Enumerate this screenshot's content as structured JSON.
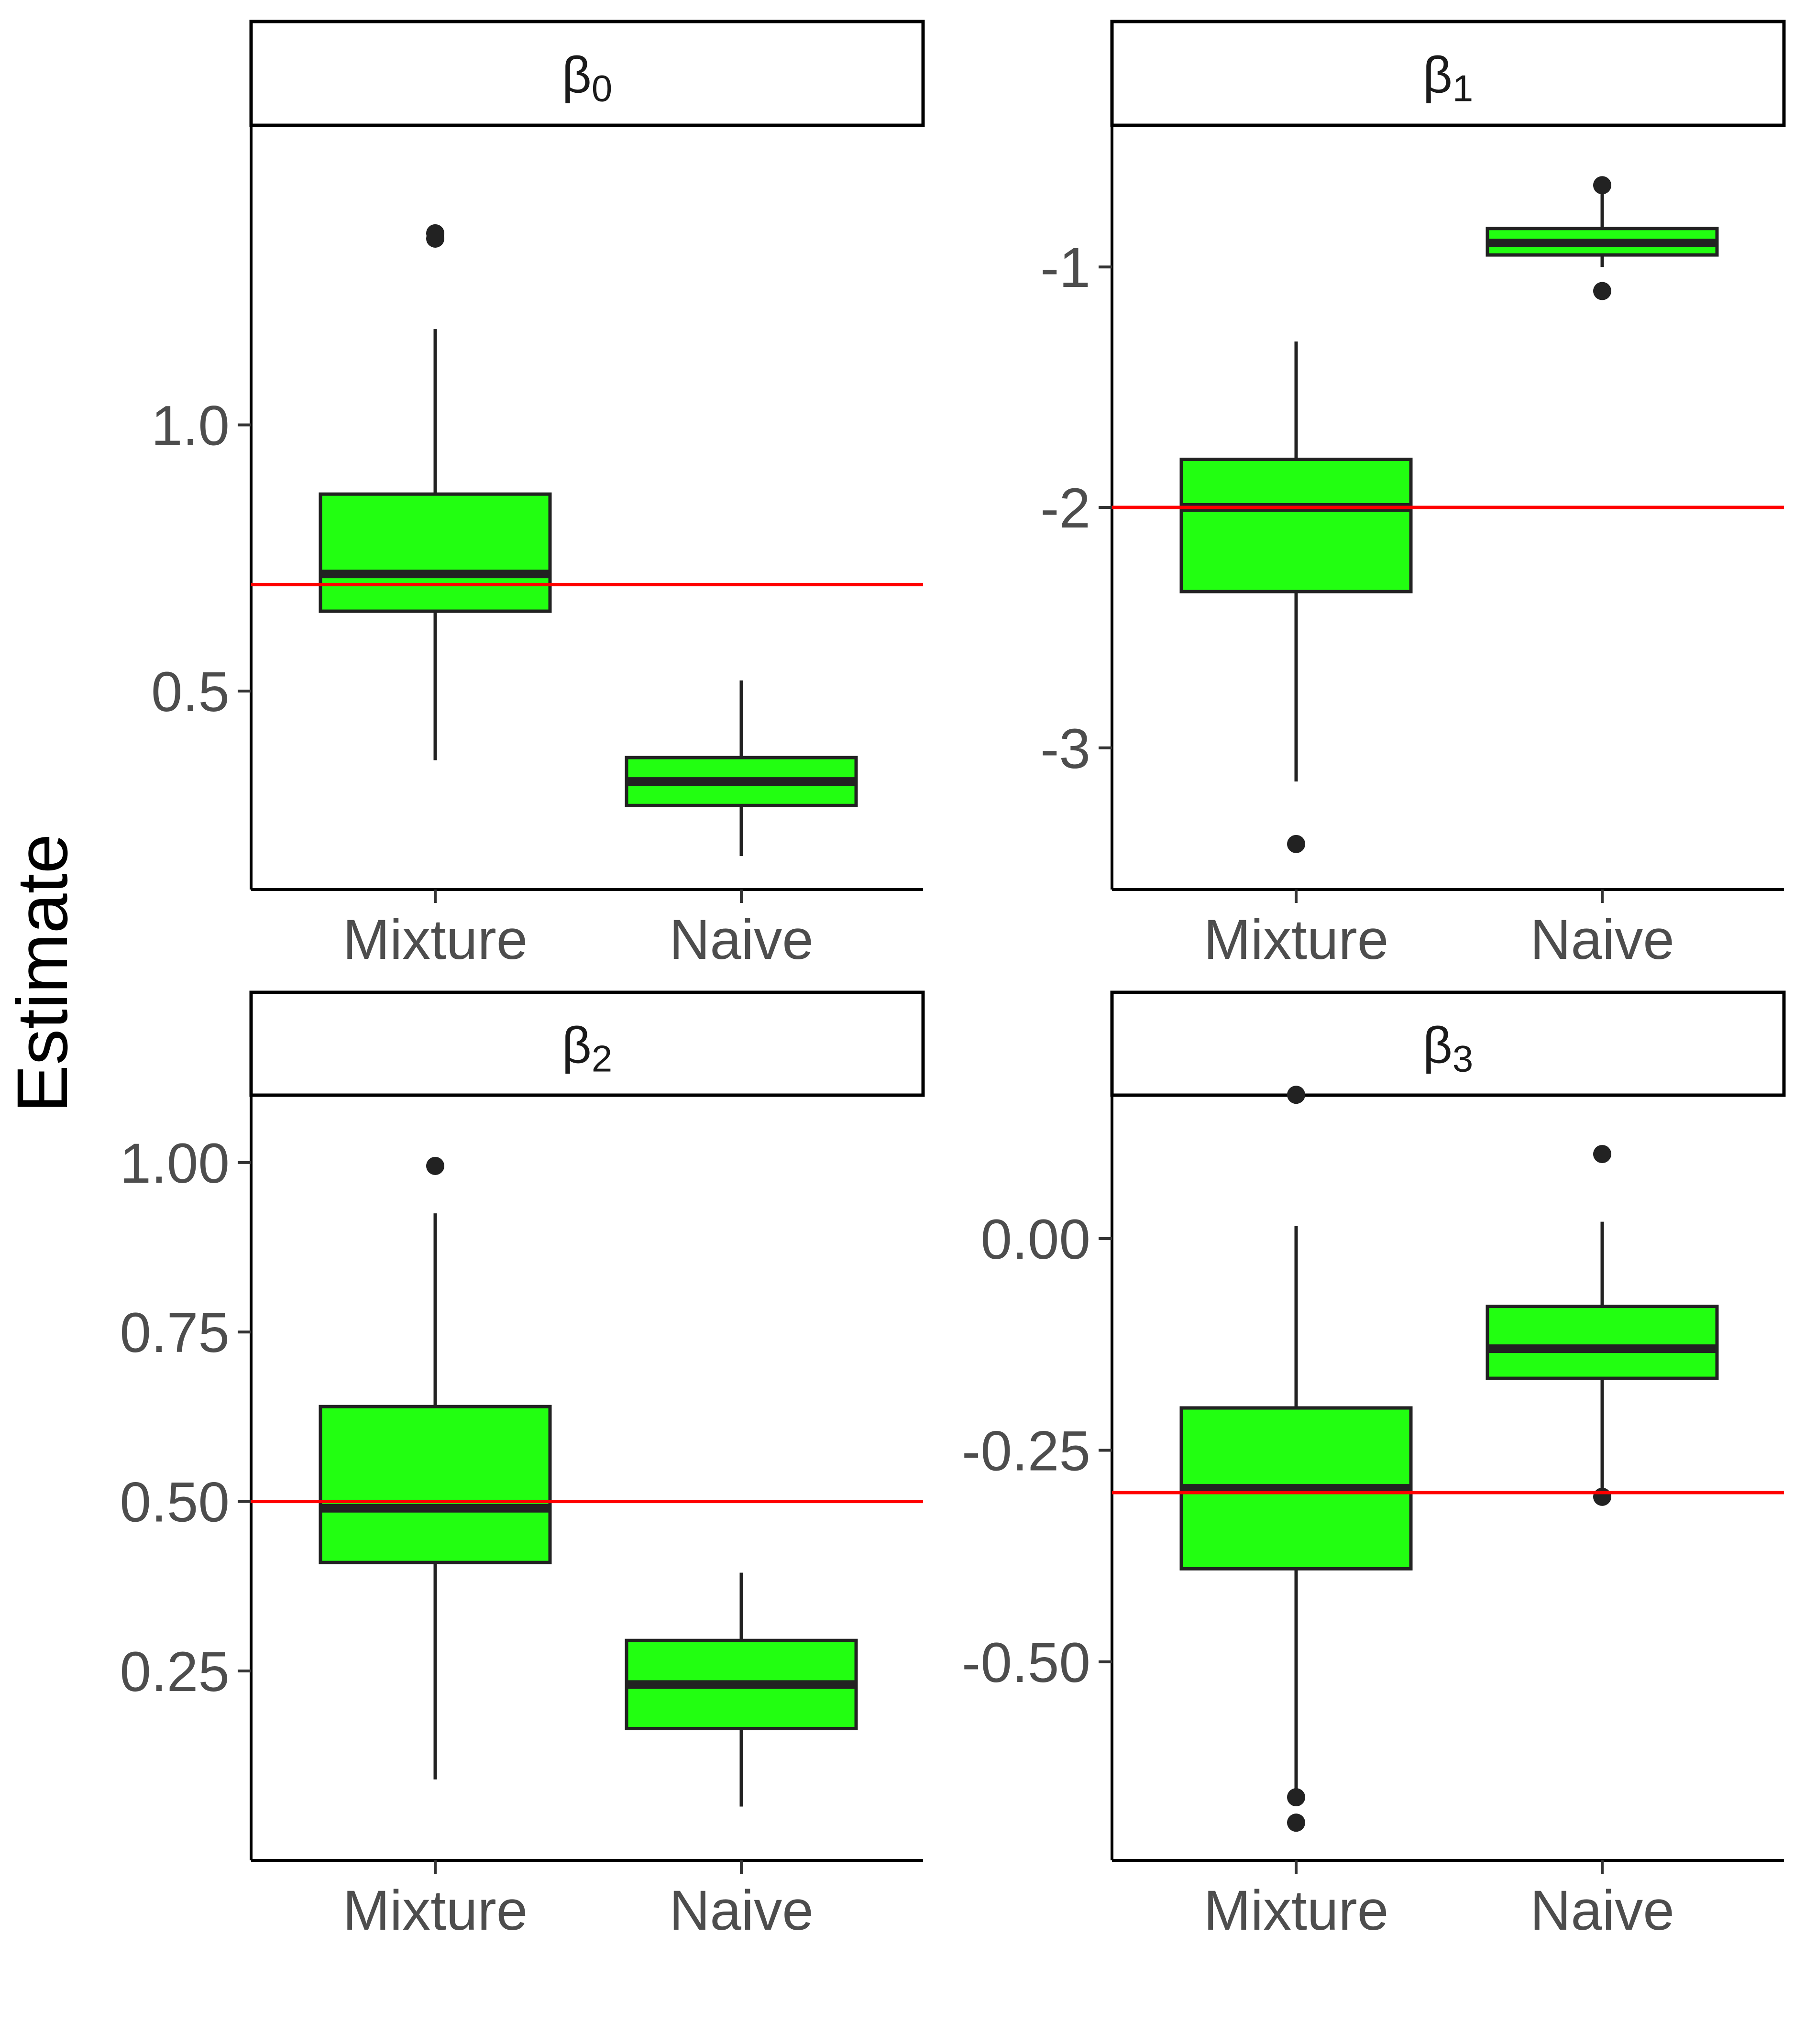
{
  "chart_data": {
    "type": "box",
    "ylabel": "Estimate",
    "categories": [
      "Mixture",
      "Naive"
    ],
    "colors": {
      "box_fill": "#22ff11",
      "reference_line": "#ff0000",
      "outline": "#222222"
    },
    "grid": false,
    "panels": [
      {
        "title_base": "β",
        "title_sub": "0",
        "ylim": [
          0.19,
          1.5
        ],
        "yticks": [
          0.5,
          1.0
        ],
        "ytick_labels": [
          "0.5",
          "1.0"
        ],
        "reference": 0.7,
        "boxes": [
          {
            "category": "Mixture",
            "min": 0.37,
            "q1": 0.65,
            "median": 0.72,
            "q3": 0.87,
            "max": 1.18,
            "outliers": [
              1.35,
              1.36
            ]
          },
          {
            "category": "Naive",
            "min": 0.19,
            "q1": 0.285,
            "median": 0.33,
            "q3": 0.375,
            "max": 0.52,
            "outliers": []
          }
        ]
      },
      {
        "title_base": "β",
        "title_sub": "1",
        "ylim": [
          -3.45,
          -0.55
        ],
        "yticks": [
          -3,
          -2,
          -1
        ],
        "ytick_labels": [
          "-3",
          "-2",
          "-1"
        ],
        "reference": -2.0,
        "boxes": [
          {
            "category": "Mixture",
            "min": -3.14,
            "q1": -2.35,
            "median": -2.0,
            "q3": -1.8,
            "max": -1.31,
            "outliers": [
              -3.4
            ]
          },
          {
            "category": "Naive",
            "min": -1.0,
            "q1": -0.95,
            "median": -0.9,
            "q3": -0.84,
            "max": -0.69,
            "outliers": [
              -0.66,
              -1.1
            ]
          }
        ]
      },
      {
        "title_base": "β",
        "title_sub": "2",
        "ylim": [
          0.02,
          1.05
        ],
        "yticks": [
          0.25,
          0.5,
          0.75,
          1.0
        ],
        "ytick_labels": [
          "0.25",
          "0.50",
          "0.75",
          "1.00"
        ],
        "reference": 0.5,
        "boxes": [
          {
            "category": "Mixture",
            "min": 0.09,
            "q1": 0.41,
            "median": 0.49,
            "q3": 0.64,
            "max": 0.925,
            "outliers": [
              0.995
            ]
          },
          {
            "category": "Naive",
            "min": 0.05,
            "q1": 0.165,
            "median": 0.23,
            "q3": 0.295,
            "max": 0.395,
            "outliers": []
          }
        ]
      },
      {
        "title_base": "β",
        "title_sub": "3",
        "ylim": [
          -0.695,
          0.13
        ],
        "yticks": [
          -0.5,
          -0.25,
          0.0
        ],
        "ytick_labels": [
          "-0.50",
          "-0.25",
          "0.00"
        ],
        "reference": -0.3,
        "boxes": [
          {
            "category": "Mixture",
            "min": -0.65,
            "q1": -0.39,
            "median": -0.295,
            "q3": -0.2,
            "max": 0.015,
            "outliers": [
              0.17,
              -0.66,
              -0.69
            ]
          },
          {
            "category": "Naive",
            "min": -0.305,
            "q1": -0.165,
            "median": -0.13,
            "q3": -0.08,
            "max": 0.02,
            "outliers": [
              0.1,
              -0.305
            ]
          }
        ]
      }
    ]
  }
}
